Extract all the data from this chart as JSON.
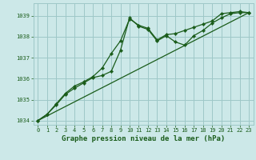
{
  "title": "Graphe pression niveau de la mer (hPa)",
  "background_color": "#cce8e8",
  "plot_bg_color": "#cce8e8",
  "grid_color": "#9ec8c8",
  "line_color": "#1a5c1a",
  "xlim": [
    -0.5,
    23.5
  ],
  "ylim": [
    1033.8,
    1039.6
  ],
  "yticks": [
    1034,
    1035,
    1036,
    1037,
    1038,
    1039
  ],
  "xticks": [
    0,
    1,
    2,
    3,
    4,
    5,
    6,
    7,
    8,
    9,
    10,
    11,
    12,
    13,
    14,
    15,
    16,
    17,
    18,
    19,
    20,
    21,
    22,
    23
  ],
  "xtick_labels": [
    "0",
    "1",
    "2",
    "3",
    "4",
    "5",
    "6",
    "7",
    "8",
    "9",
    "10",
    "11",
    "12",
    "13",
    "14",
    "15",
    "16",
    "17",
    "18",
    "19",
    "20",
    "21",
    "22",
    "23"
  ],
  "ytick_labels": [
    "1034",
    "1035",
    "1036",
    "1037",
    "1038",
    "1039"
  ],
  "series1_x": [
    0,
    1,
    2,
    3,
    4,
    5,
    6,
    7,
    8,
    9,
    10,
    11,
    12,
    13,
    14,
    15,
    16,
    17,
    18,
    19,
    20,
    21,
    22,
    23
  ],
  "series1_y": [
    1034.0,
    1034.3,
    1034.75,
    1035.25,
    1035.55,
    1035.8,
    1036.05,
    1036.15,
    1036.35,
    1037.35,
    1038.9,
    1038.5,
    1038.35,
    1037.8,
    1038.05,
    1037.75,
    1037.6,
    1038.05,
    1038.3,
    1038.65,
    1038.9,
    1039.1,
    1039.15,
    1039.15
  ],
  "series2_x": [
    0,
    1,
    2,
    3,
    4,
    5,
    6,
    7,
    8,
    9,
    10,
    11,
    12,
    13,
    14,
    15,
    16,
    17,
    18,
    19,
    20,
    21,
    22,
    23
  ],
  "series2_y": [
    1034.0,
    1034.3,
    1034.8,
    1035.3,
    1035.65,
    1035.85,
    1036.1,
    1036.5,
    1037.2,
    1037.8,
    1038.85,
    1038.55,
    1038.4,
    1037.85,
    1038.1,
    1038.15,
    1038.3,
    1038.45,
    1038.6,
    1038.75,
    1039.1,
    1039.15,
    1039.2,
    1039.15
  ],
  "series3_x": [
    0,
    23
  ],
  "series3_y": [
    1034.0,
    1039.15
  ],
  "title_fontsize": 6.5,
  "tick_fontsize": 5.0
}
